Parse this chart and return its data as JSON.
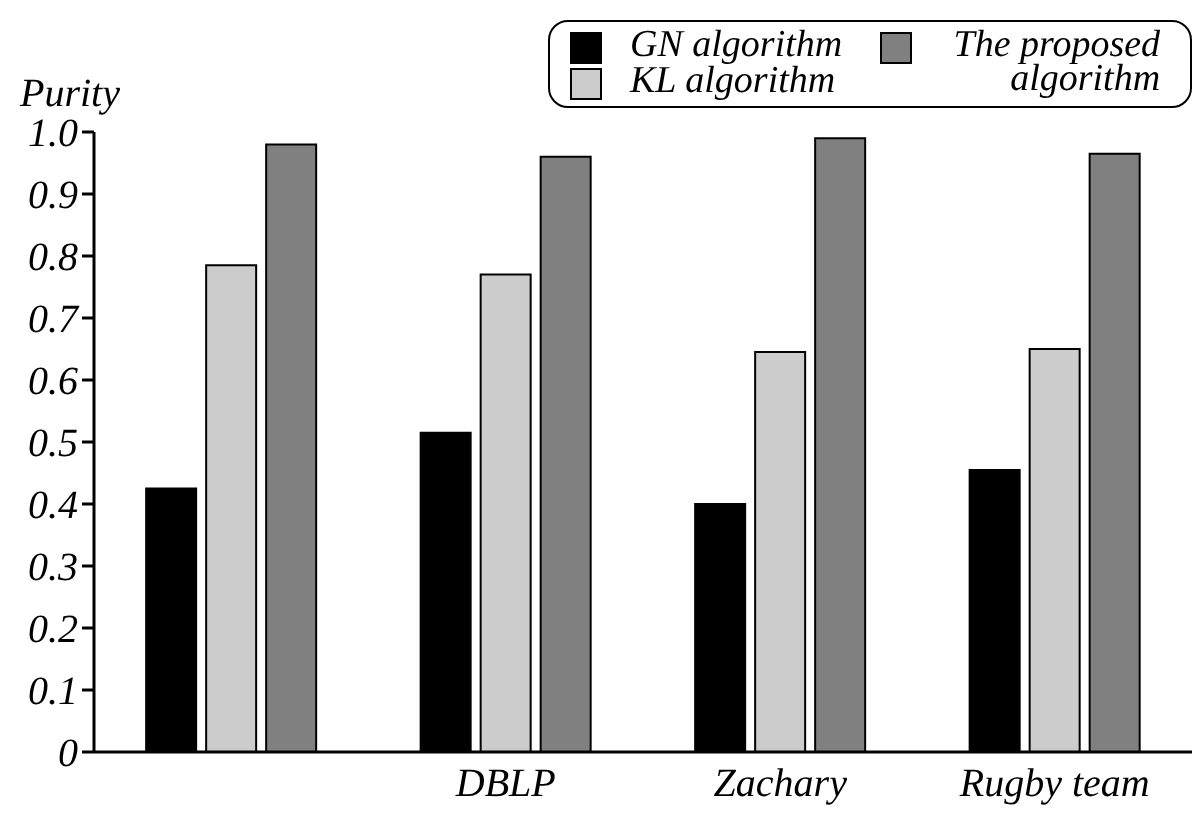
{
  "chart_data": {
    "type": "bar",
    "ylabel": "Purity",
    "categories": [
      null,
      "DBLP",
      "Zachary",
      "Rugby team"
    ],
    "series": [
      {
        "name": "GN algorithm",
        "color": "#000000",
        "values": [
          0.425,
          0.515,
          0.4,
          0.455
        ]
      },
      {
        "name": "KL algorithm",
        "color": "#cccccc",
        "values": [
          0.785,
          0.77,
          0.645,
          0.65
        ]
      },
      {
        "name": "The proposed algorithm",
        "color": "#808080",
        "values": [
          0.98,
          0.96,
          0.99,
          0.965
        ]
      }
    ],
    "ylim": [
      0,
      1
    ],
    "yticks": [
      0,
      0.1,
      0.2,
      0.3,
      0.4,
      0.5,
      0.6,
      0.7,
      0.8,
      0.9,
      {
        "value": 1,
        "label": "1.0"
      }
    ],
    "grid": false,
    "legend": "top right"
  }
}
